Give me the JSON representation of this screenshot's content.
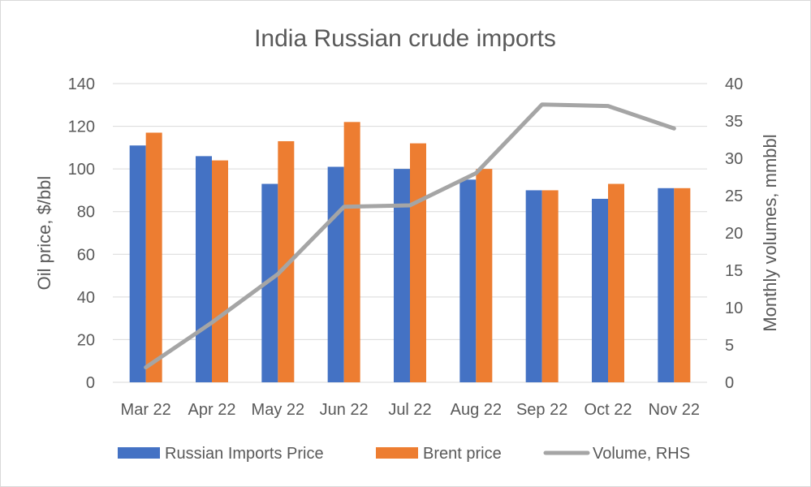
{
  "chart_data": {
    "type": "bar",
    "title": "India Russian crude imports",
    "categories": [
      "Mar 22",
      "Apr 22",
      "May 22",
      "Jun 22",
      "Jul 22",
      "Aug 22",
      "Sep 22",
      "Oct 22",
      "Nov 22"
    ],
    "series": [
      {
        "name": "Russian Imports Price",
        "type": "bar",
        "axis": "left",
        "color": "#4472c4",
        "values": [
          111,
          106,
          93,
          101,
          100,
          95,
          90,
          86,
          91
        ]
      },
      {
        "name": "Brent price",
        "type": "bar",
        "axis": "left",
        "color": "#ed7d31",
        "values": [
          117,
          104,
          113,
          122,
          112,
          100,
          90,
          93,
          91
        ]
      },
      {
        "name": "Volume, RHS",
        "type": "line",
        "axis": "right",
        "color": "#a5a5a5",
        "values": [
          2,
          8,
          14.5,
          23.5,
          23.7,
          28,
          37.2,
          37,
          34
        ]
      }
    ],
    "ylabel": "Oil price, $/bbl",
    "ylim": [
      0,
      140
    ],
    "yticks": [
      0,
      20,
      40,
      60,
      80,
      100,
      120,
      140
    ],
    "y2label": "Monthly volumes, mmbbl",
    "y2lim": [
      0,
      40
    ],
    "y2ticks": [
      0,
      5,
      10,
      15,
      20,
      25,
      30,
      35,
      40
    ],
    "grid": true,
    "legend_position": "bottom"
  }
}
